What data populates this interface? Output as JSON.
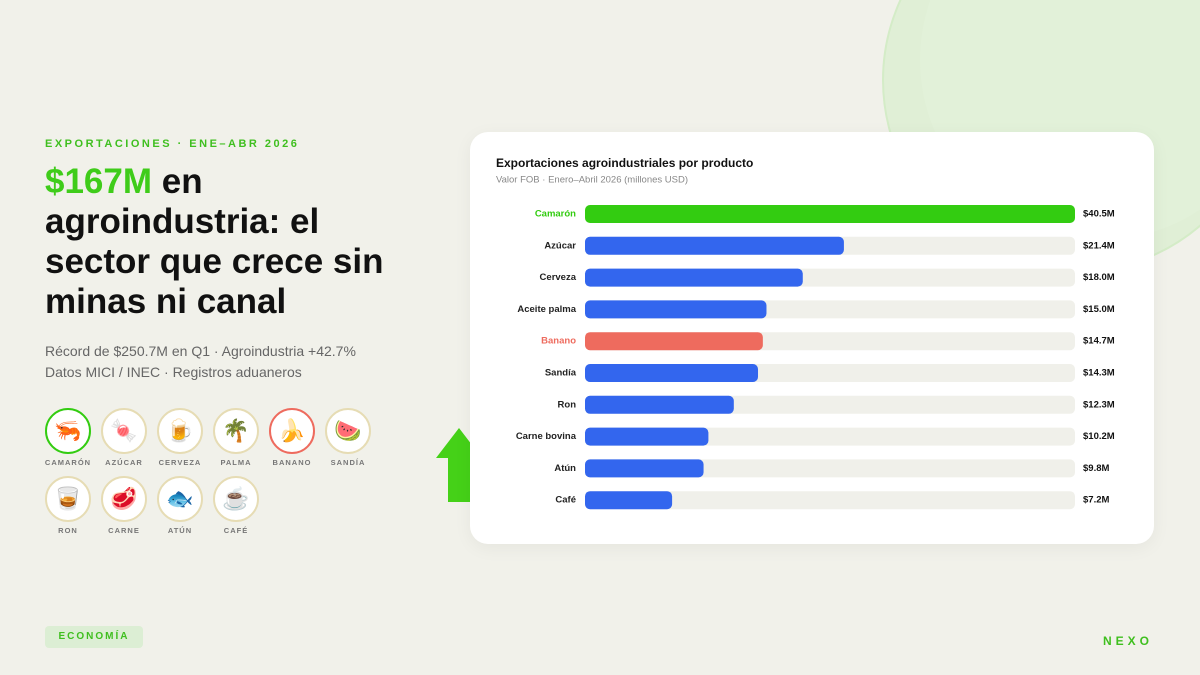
{
  "kicker": "EXPORTACIONES · ENE–ABR 2026",
  "headline": {
    "highlight": "$167M",
    "text": "en agroindustria: el sector que crece sin minas ni canal"
  },
  "subtitle": [
    "Récord de $250.7M en Q1 · Agroindustria +42.7%",
    "Datos MICI / INEC · Registros aduaneros"
  ],
  "icons": [
    {
      "emoji": "🦐",
      "label": "CAMARÓN",
      "color": "#33cc11"
    },
    {
      "emoji": "🍬",
      "label": "AZÚCAR",
      "color": "#e6dcb4"
    },
    {
      "emoji": "🍺",
      "label": "CERVEZA",
      "color": "#e6dcb4"
    },
    {
      "emoji": "🌴",
      "label": "PALMA",
      "color": "#e6dcb4"
    },
    {
      "emoji": "🍌",
      "label": "BANANO",
      "color": "#ee6b5e"
    },
    {
      "emoji": "🍉",
      "label": "SANDÍA",
      "color": "#e6dcb4"
    },
    {
      "emoji": "🥃",
      "label": "RON",
      "color": "#e6dcb4"
    },
    {
      "emoji": "🥩",
      "label": "CARNE",
      "color": "#e6dcb4"
    },
    {
      "emoji": "🐟",
      "label": "ATÚN",
      "color": "#e6dcb4"
    },
    {
      "emoji": "☕",
      "label": "CAFÉ",
      "color": "#e6dcb4"
    }
  ],
  "badge": "ECONOMÍA",
  "brand": "NEXO",
  "chart_data": {
    "type": "hbar",
    "title": "Exportaciones agroindustriales por producto",
    "subtitle": "Valor FOB · Enero–Abril 2026 (millones USD)",
    "categories": [
      "Camarón",
      "Azúcar",
      "Cerveza",
      "Aceite palma",
      "Banano",
      "Sandía",
      "Ron",
      "Carne bovina",
      "Atún",
      "Café"
    ],
    "values": [
      40.5,
      21.4,
      18.0,
      15.0,
      14.7,
      14.3,
      12.3,
      10.2,
      9.8,
      7.2
    ],
    "value_labels": [
      "$40.5M",
      "$21.4M",
      "$18.0M",
      "$15.0M",
      "$14.7M",
      "$14.3M",
      "$12.3M",
      "$10.2M",
      "$9.8M",
      "$7.2M"
    ],
    "colors": [
      "#33cc11",
      "#3366ee",
      "#3366ee",
      "#3366ee",
      "#ee6b5e",
      "#3366ee",
      "#3366ee",
      "#3366ee",
      "#3366ee",
      "#3366ee"
    ],
    "xlim": [
      0,
      40.5
    ]
  }
}
